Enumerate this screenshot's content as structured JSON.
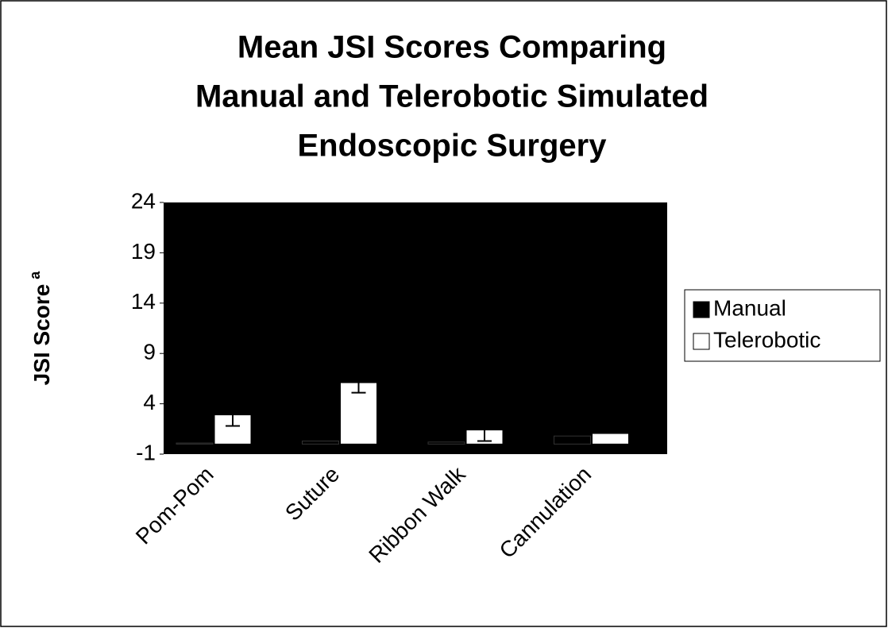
{
  "chart_data": {
    "type": "bar",
    "title": [
      "Mean JSI Scores Comparing",
      "Manual and Telerobotic Simulated",
      "Endoscopic Surgery"
    ],
    "ylabel": "JSI Score",
    "ylabel_note": "a",
    "categories": [
      "Pom-Pom",
      "Suture",
      "Ribbon Walk",
      "Cannulation"
    ],
    "series": [
      {
        "name": "Manual",
        "color": "#000000",
        "values": [
          0.1,
          0.3,
          0.2,
          0.8
        ]
      },
      {
        "name": "Telerobotic",
        "color": "#ffffff",
        "values": [
          2.9,
          6.1,
          1.4,
          1.05
        ],
        "errors": [
          1.1,
          1.0,
          1.1,
          null
        ]
      }
    ],
    "ylim": [
      -1,
      24
    ],
    "yticks": [
      -1,
      4,
      9,
      14,
      19,
      24
    ],
    "plot_background": "#000000",
    "legend": "right"
  }
}
